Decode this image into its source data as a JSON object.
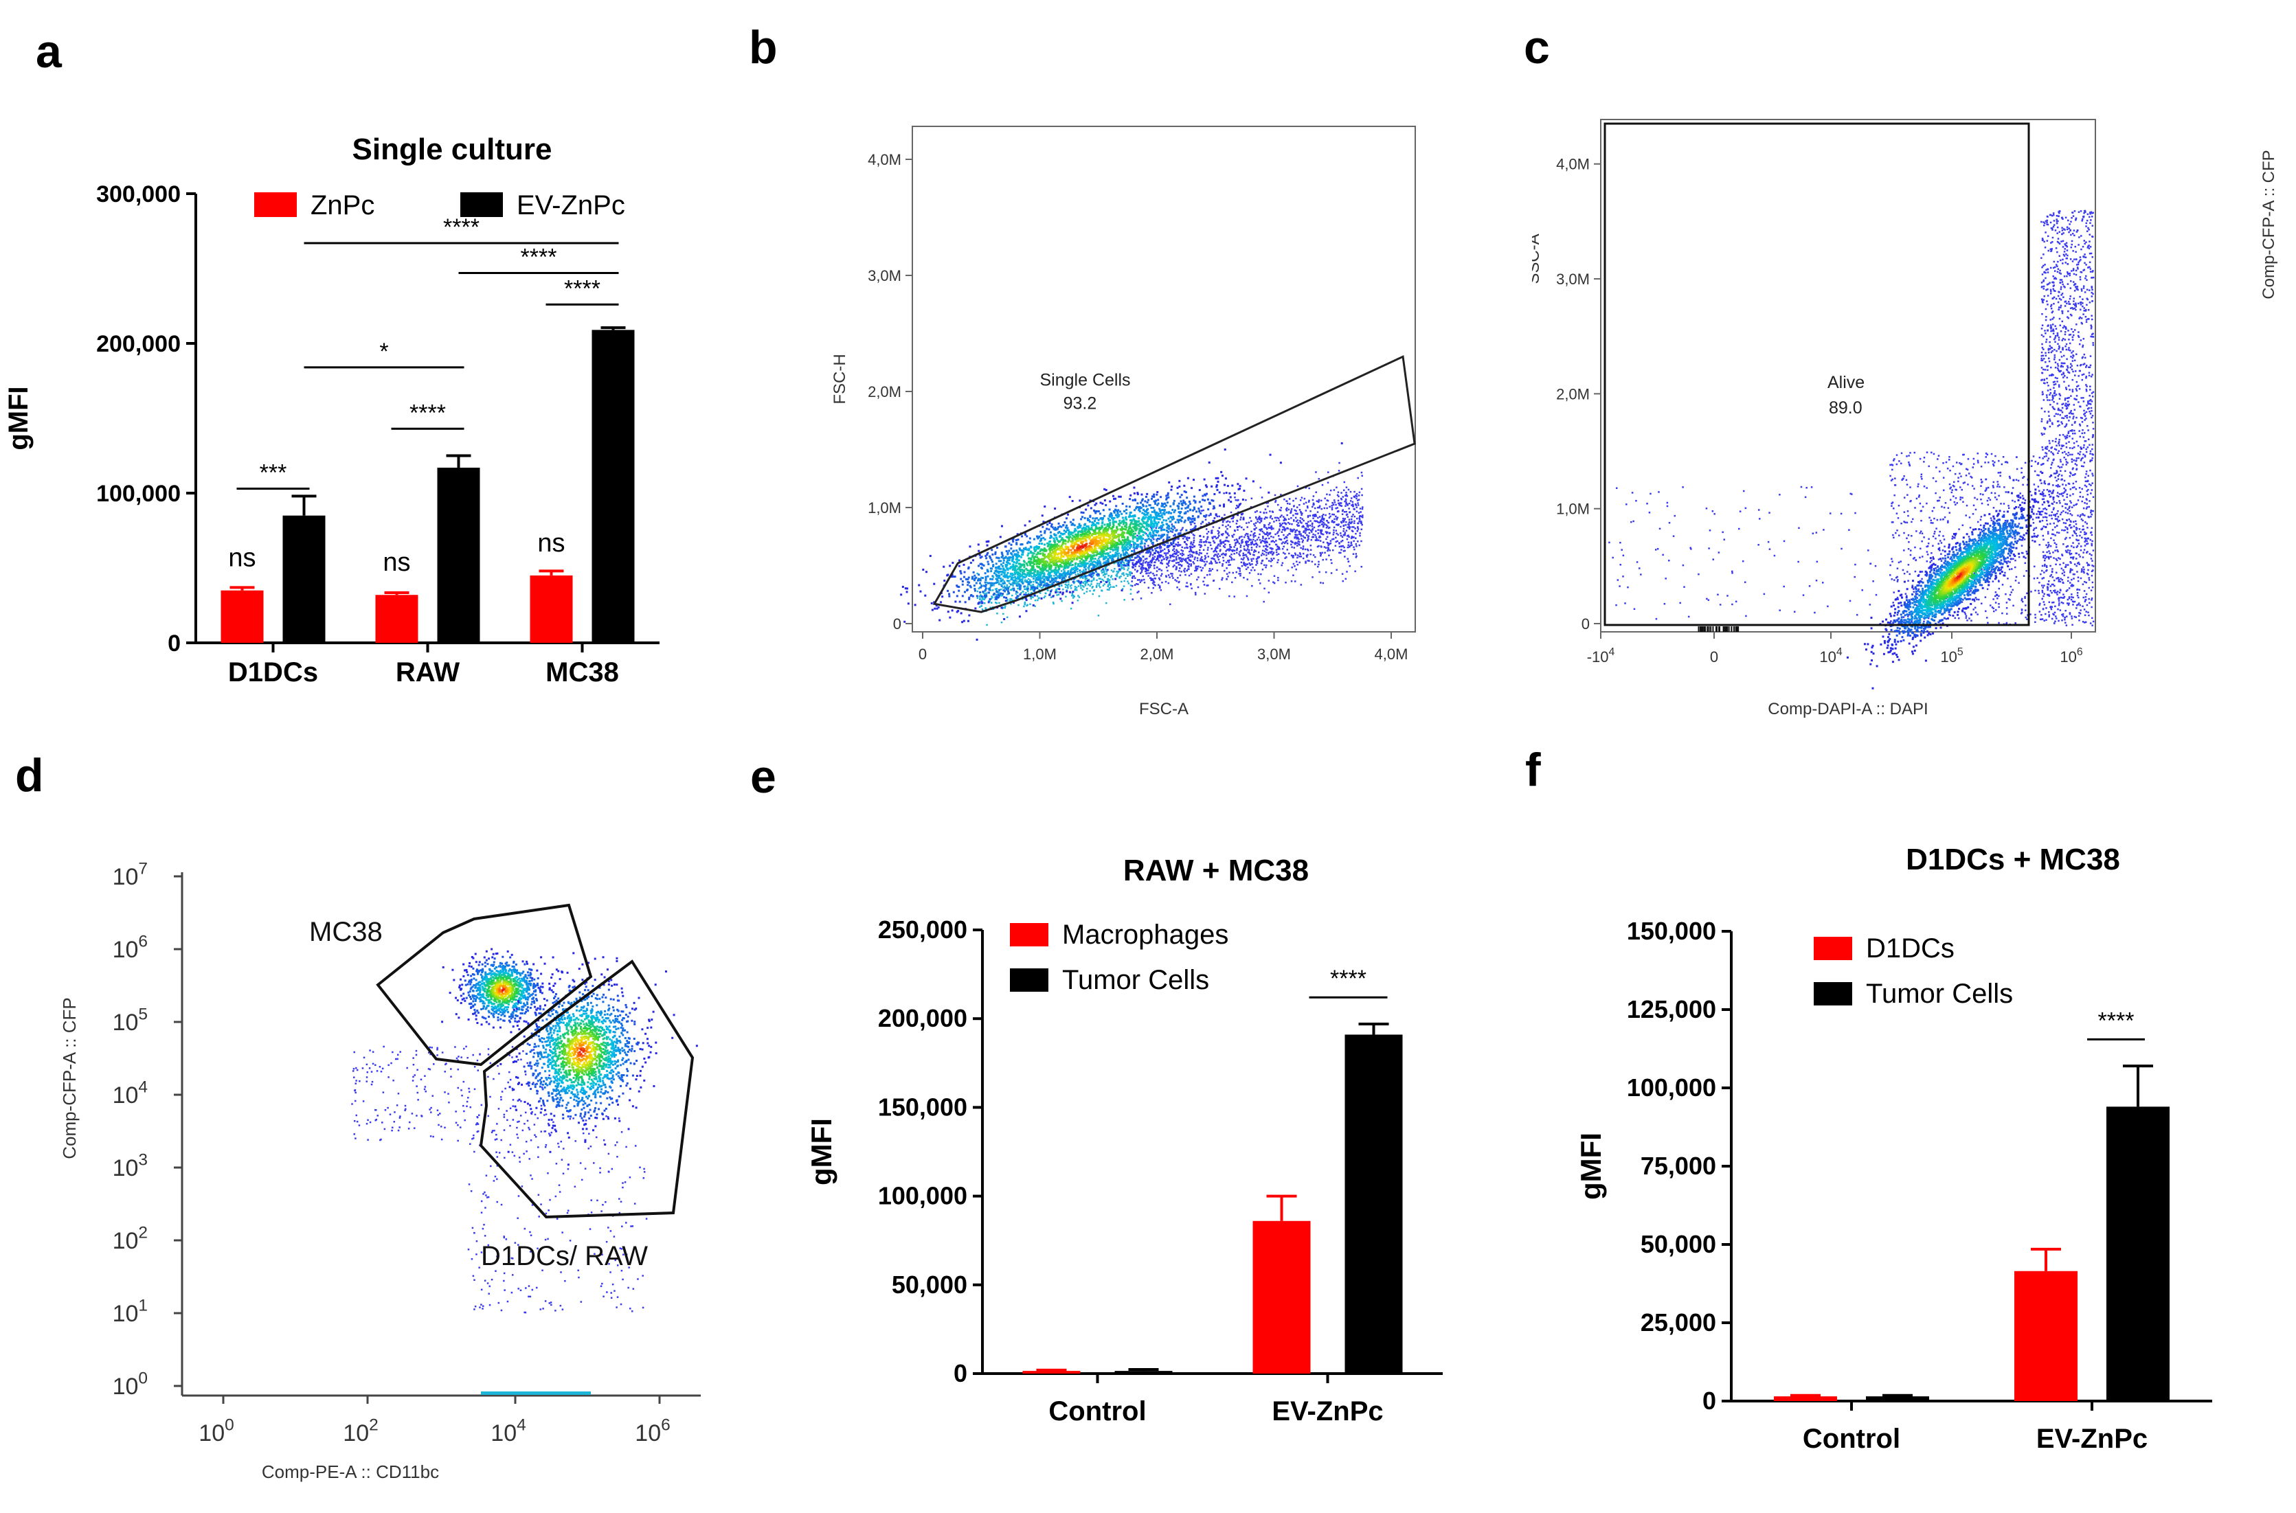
{
  "panel_labels": {
    "a": "a",
    "b": "b",
    "c": "c",
    "d": "d",
    "e": "e",
    "f": "f"
  },
  "chart_data": [
    {
      "id": "a",
      "type": "bar",
      "title": "Single culture",
      "ylabel": "gMFI",
      "xlabel": "",
      "categories": [
        "D1DCs",
        "RAW",
        "MC38"
      ],
      "series": [
        {
          "name": "ZnPc",
          "color": "#ff0000",
          "values": [
            35000,
            32000,
            45000
          ],
          "errors": [
            2000,
            1500,
            3000
          ]
        },
        {
          "name": "EV-ZnPc",
          "color": "#000000",
          "values": [
            85000,
            117000,
            209000
          ],
          "errors": [
            13000,
            8000,
            1500
          ]
        }
      ],
      "ylim": [
        0,
        300000
      ],
      "yticks": [
        "0",
        "100,000",
        "200,000",
        "300,000"
      ],
      "ns_labels": [
        "ns",
        "ns",
        "ns"
      ],
      "significance": [
        {
          "label": "***",
          "from": "D1DCs ZnPc",
          "to": "D1DCs EV-ZnPc"
        },
        {
          "label": "****",
          "from": "RAW ZnPc",
          "to": "RAW EV-ZnPc"
        },
        {
          "label": "****",
          "from": "MC38 ZnPc",
          "to": "MC38 EV-ZnPc"
        },
        {
          "label": "*",
          "from": "D1DCs",
          "to": "RAW"
        },
        {
          "label": "****",
          "from": "RAW",
          "to": "MC38"
        },
        {
          "label": "****",
          "from": "D1DCs",
          "to": "MC38"
        }
      ]
    },
    {
      "id": "b",
      "type": "scatter",
      "title": "",
      "xlabel": "FSC-A",
      "ylabel": "FSC-H",
      "xticks": [
        "0",
        "1,0M",
        "2,0M",
        "3,0M",
        "4,0M"
      ],
      "yticks": [
        "0",
        "1,0M",
        "2,0M",
        "3,0M",
        "4,0M"
      ],
      "xlim": [
        0,
        4.2
      ],
      "ylim": [
        0,
        4.2
      ],
      "gate_name": "Single Cells",
      "gate_value": "93.2"
    },
    {
      "id": "c",
      "type": "scatter",
      "title": "",
      "xlabel": "Comp-DAPI-A :: DAPI",
      "ylabel": "SSC-A",
      "right_label": "Comp-CFP-A :: CFP",
      "xticks": [
        "-10",
        "0",
        "10",
        "10",
        "10"
      ],
      "xtick_exps": [
        "4",
        "",
        "4",
        "5",
        "6"
      ],
      "yticks": [
        "0",
        "1,0M",
        "2,0M",
        "3,0M",
        "4,0M"
      ],
      "gate_name": "Alive",
      "gate_value": "89.0"
    },
    {
      "id": "d",
      "type": "scatter",
      "title": "",
      "xlabel": "Comp-PE-A :: CD11bc",
      "ylabel": "Comp-CFP-A :: CFP",
      "xticks": [
        "10",
        "10",
        "10",
        "10"
      ],
      "xtick_exps": [
        "0",
        "2",
        "4",
        "6"
      ],
      "yticks": [
        "10",
        "10",
        "10",
        "10",
        "10",
        "10",
        "10",
        "10"
      ],
      "ytick_exps": [
        "0",
        "1",
        "2",
        "3",
        "4",
        "5",
        "6",
        "7"
      ],
      "gates": [
        "MC38",
        "D1DCs/ RAW"
      ]
    },
    {
      "id": "e",
      "type": "bar",
      "title": "RAW + MC38",
      "ylabel": "gMFI",
      "xlabel": "",
      "categories": [
        "Control",
        "EV-ZnPc"
      ],
      "series": [
        {
          "name": "Macrophages",
          "color": "#ff0000",
          "values": [
            1500,
            86000
          ],
          "errors": [
            500,
            14000
          ]
        },
        {
          "name": "Tumor Cells",
          "color": "#000000",
          "values": [
            1500,
            191000
          ],
          "errors": [
            800,
            6000
          ]
        }
      ],
      "ylim": [
        0,
        250000
      ],
      "yticks": [
        "0",
        "50,000",
        "100,000",
        "150,000",
        "200,000",
        "250,000"
      ],
      "significance": [
        {
          "label": "****",
          "from": "EV-ZnPc Macrophages",
          "to": "EV-ZnPc Tumor Cells"
        }
      ]
    },
    {
      "id": "f",
      "type": "bar",
      "title": "D1DCs + MC38",
      "ylabel": "gMFI",
      "xlabel": "",
      "categories": [
        "Control",
        "EV-ZnPc"
      ],
      "series": [
        {
          "name": "D1DCs",
          "color": "#ff0000",
          "values": [
            1500,
            41500
          ],
          "errors": [
            300,
            7000
          ]
        },
        {
          "name": "Tumor Cells",
          "color": "#000000",
          "values": [
            1500,
            94000
          ],
          "errors": [
            300,
            13000
          ]
        }
      ],
      "ylim": [
        0,
        150000
      ],
      "yticks": [
        "0",
        "25,000",
        "50,000",
        "75,000",
        "100,000",
        "125,000",
        "150,000"
      ],
      "significance": [
        {
          "label": "****",
          "from": "EV-ZnPc D1DCs",
          "to": "EV-ZnPc Tumor Cells"
        }
      ]
    }
  ]
}
